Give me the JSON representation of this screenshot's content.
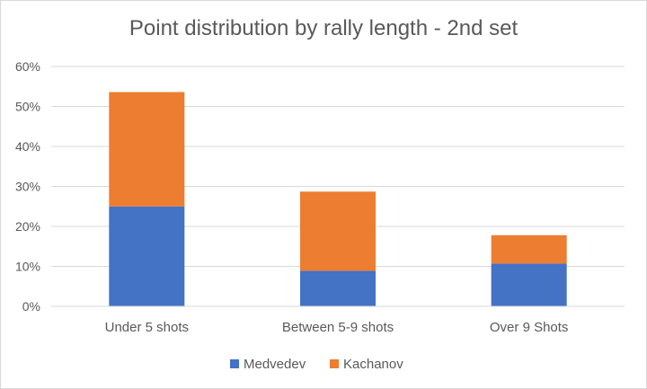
{
  "chart_data": {
    "type": "bar",
    "stacked": true,
    "title": "Point distribution by rally length - 2nd set",
    "categories": [
      "Under 5 shots",
      "Between 5-9 shots",
      "Over 9 Shots"
    ],
    "series": [
      {
        "name": "Medvedev",
        "values": [
          25.0,
          8.9,
          10.7
        ],
        "color": "#4472c4"
      },
      {
        "name": "Kachanov",
        "values": [
          28.6,
          19.8,
          7.1
        ],
        "color": "#ed7d31"
      }
    ],
    "xlabel": "",
    "ylabel": "",
    "ylim": [
      0,
      60
    ],
    "yticks": [
      "0%",
      "10%",
      "20%",
      "30%",
      "40%",
      "50%",
      "60%"
    ],
    "grid": true,
    "legend": "bottom"
  }
}
